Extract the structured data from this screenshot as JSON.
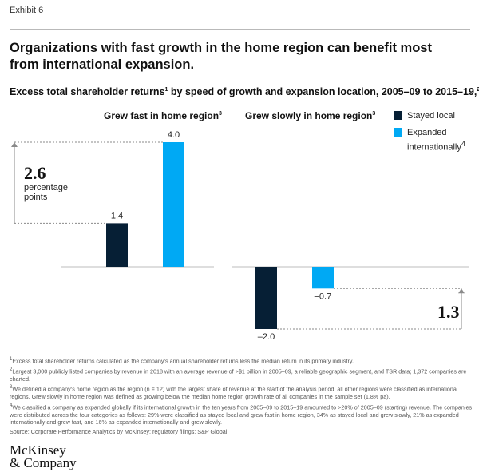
{
  "exhibit_label": "Exhibit 6",
  "headline": "Organizations with fast growth in the home region can benefit most from international expansion.",
  "subtitle": {
    "text": "Excess total shareholder returns",
    "sup1": "1",
    "rest": " by speed of growth and expansion location, 2005–09 to 2015–19,",
    "sup2": "2",
    "unit": " %"
  },
  "legend": [
    {
      "label": "Stayed local",
      "sup": "",
      "color": "#061f35"
    },
    {
      "label": "Expanded internationally",
      "sup": "4",
      "color": "#00a9f4"
    }
  ],
  "annotations": {
    "gap_left_value": "2.6",
    "gap_left_text_1": "percentage",
    "gap_left_text_2": "points",
    "gap_right_value": "1.3"
  },
  "chart_data": {
    "type": "bar",
    "panels": [
      {
        "title": "Grew fast in home region",
        "title_sup": "3",
        "categories": [
          "Stayed local",
          "Expanded internationally"
        ],
        "values": [
          1.4,
          4.0
        ],
        "labels": [
          "1.4",
          "4.0"
        ]
      },
      {
        "title": "Grew slowly in home region",
        "title_sup": "3",
        "categories": [
          "Stayed local",
          "Expanded internationally"
        ],
        "values": [
          -2.0,
          -0.7
        ],
        "labels": [
          "–2.0",
          "–0.7"
        ]
      }
    ],
    "series_colors": {
      "Stayed local": "#061f35",
      "Expanded internationally": "#00a9f4"
    }
  },
  "footnotes": [
    {
      "sup": "1",
      "text": "Excess total shareholder returns calculated as the company’s annual shareholder returns less the median return in its primary industry."
    },
    {
      "sup": "2",
      "text": "Largest 3,000 publicly listed companies by revenue in 2018 with an average revenue of >$1 billion in 2005–09, a reliable geographic segment, and TSR data; 1,372 companies are charted."
    },
    {
      "sup": "3",
      "text": "We defined a company’s home region as the region (n = 12) with the largest share of revenue at the start of the analysis period; all other regions were classified as international regions. Grew slowly in home region was defined as growing below the median home region growth rate of all companies in the sample set (1.8% pa)."
    },
    {
      "sup": "4",
      "text": "We classified a company as expanded globally if its international growth in the ten years from 2005–09 to 2015–19 amounted to >20% of 2005–09 (starting) revenue. The companies were distributed across the four categories as follows: 29% were classified as stayed local and grew fast in home region, 34% as stayed local and grew slowly, 21% as expanded internationally and grew fast, and 16% as expanded internationally and grew slowly."
    }
  ],
  "source": "Source: Corporate Performance Analytics by McKinsey; regulatory filings; S&P Global",
  "logo": {
    "line1": "McKinsey",
    "line2": "& Company"
  }
}
